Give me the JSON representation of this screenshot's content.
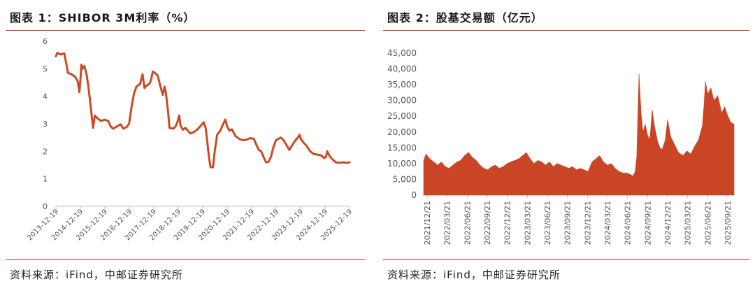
{
  "colors": {
    "line": "#cc4a22",
    "area": "#c94526",
    "rule": "#b8473a",
    "axis": "#bdbdbd",
    "tick_text": "#555555"
  },
  "chart_data": [
    {
      "type": "line",
      "title": "图表 1：SHIBOR 3M利率（%）",
      "source": "资料来源：iFind，中邮证券研究所",
      "ylim": [
        0,
        6
      ],
      "yticks": [
        "0",
        "1",
        "2",
        "3",
        "4",
        "5",
        "6"
      ],
      "x_tick_labels": [
        "2013-12-19",
        "2014-12-19",
        "2015-12-19",
        "2016-12-19",
        "2017-12-19",
        "2018-12-19",
        "2019-12-19",
        "2020-12-19",
        "2021-12-19",
        "2022-12-19",
        "2023-12-19",
        "2024-12-19",
        "2025-12-19"
      ],
      "x_range": [
        2013.96,
        2025.96
      ],
      "grid": false,
      "legend": "none",
      "series": [
        {
          "points": [
            [
              2013.96,
              5.45
            ],
            [
              2014.02,
              5.58
            ],
            [
              2014.15,
              5.52
            ],
            [
              2014.3,
              5.56
            ],
            [
              2014.38,
              5.2
            ],
            [
              2014.45,
              4.85
            ],
            [
              2014.6,
              4.8
            ],
            [
              2014.75,
              4.7
            ],
            [
              2014.85,
              4.55
            ],
            [
              2014.92,
              4.15
            ],
            [
              2014.97,
              4.7
            ],
            [
              2015.0,
              5.15
            ],
            [
              2015.05,
              5.0
            ],
            [
              2015.12,
              5.1
            ],
            [
              2015.2,
              4.85
            ],
            [
              2015.28,
              4.4
            ],
            [
              2015.36,
              3.8
            ],
            [
              2015.42,
              3.3
            ],
            [
              2015.48,
              2.85
            ],
            [
              2015.55,
              3.3
            ],
            [
              2015.65,
              3.2
            ],
            [
              2015.8,
              3.1
            ],
            [
              2015.95,
              3.15
            ],
            [
              2016.1,
              3.1
            ],
            [
              2016.2,
              2.9
            ],
            [
              2016.3,
              2.82
            ],
            [
              2016.45,
              2.9
            ],
            [
              2016.6,
              2.98
            ],
            [
              2016.72,
              2.82
            ],
            [
              2016.85,
              2.88
            ],
            [
              2016.95,
              3.0
            ],
            [
              2017.05,
              3.6
            ],
            [
              2017.15,
              4.1
            ],
            [
              2017.25,
              4.35
            ],
            [
              2017.4,
              4.45
            ],
            [
              2017.5,
              4.8
            ],
            [
              2017.58,
              4.3
            ],
            [
              2017.68,
              4.4
            ],
            [
              2017.78,
              4.45
            ],
            [
              2017.85,
              4.6
            ],
            [
              2017.92,
              4.9
            ],
            [
              2018.0,
              4.85
            ],
            [
              2018.12,
              4.75
            ],
            [
              2018.25,
              4.3
            ],
            [
              2018.33,
              4.05
            ],
            [
              2018.4,
              4.35
            ],
            [
              2018.45,
              4.15
            ],
            [
              2018.55,
              3.4
            ],
            [
              2018.6,
              2.85
            ],
            [
              2018.75,
              2.82
            ],
            [
              2018.85,
              2.9
            ],
            [
              2018.92,
              3.05
            ],
            [
              2019.0,
              3.3
            ],
            [
              2019.05,
              2.95
            ],
            [
              2019.15,
              2.78
            ],
            [
              2019.25,
              2.85
            ],
            [
              2019.35,
              2.75
            ],
            [
              2019.45,
              2.65
            ],
            [
              2019.6,
              2.7
            ],
            [
              2019.75,
              2.8
            ],
            [
              2019.9,
              2.95
            ],
            [
              2020.0,
              3.05
            ],
            [
              2020.08,
              2.85
            ],
            [
              2020.15,
              2.3
            ],
            [
              2020.22,
              1.75
            ],
            [
              2020.28,
              1.42
            ],
            [
              2020.38,
              1.42
            ],
            [
              2020.45,
              2.0
            ],
            [
              2020.55,
              2.6
            ],
            [
              2020.68,
              2.75
            ],
            [
              2020.8,
              3.0
            ],
            [
              2020.88,
              3.15
            ],
            [
              2020.96,
              2.9
            ],
            [
              2021.05,
              2.75
            ],
            [
              2021.15,
              2.8
            ],
            [
              2021.3,
              2.55
            ],
            [
              2021.45,
              2.45
            ],
            [
              2021.6,
              2.4
            ],
            [
              2021.75,
              2.42
            ],
            [
              2021.9,
              2.48
            ],
            [
              2022.05,
              2.45
            ],
            [
              2022.12,
              2.3
            ],
            [
              2022.25,
              2.05
            ],
            [
              2022.35,
              2.0
            ],
            [
              2022.45,
              1.78
            ],
            [
              2022.55,
              1.6
            ],
            [
              2022.65,
              1.62
            ],
            [
              2022.75,
              1.8
            ],
            [
              2022.85,
              2.15
            ],
            [
              2022.95,
              2.4
            ],
            [
              2023.05,
              2.45
            ],
            [
              2023.15,
              2.5
            ],
            [
              2023.25,
              2.42
            ],
            [
              2023.4,
              2.2
            ],
            [
              2023.5,
              2.05
            ],
            [
              2023.6,
              2.2
            ],
            [
              2023.75,
              2.4
            ],
            [
              2023.85,
              2.5
            ],
            [
              2023.92,
              2.6
            ],
            [
              2023.97,
              2.45
            ],
            [
              2024.05,
              2.35
            ],
            [
              2024.2,
              2.2
            ],
            [
              2024.35,
              2.0
            ],
            [
              2024.5,
              1.9
            ],
            [
              2024.65,
              1.88
            ],
            [
              2024.78,
              1.85
            ],
            [
              2024.85,
              1.82
            ],
            [
              2024.92,
              1.75
            ],
            [
              2025.0,
              1.8
            ],
            [
              2025.05,
              2.0
            ],
            [
              2025.15,
              1.82
            ],
            [
              2025.25,
              1.72
            ],
            [
              2025.4,
              1.6
            ],
            [
              2025.55,
              1.58
            ],
            [
              2025.7,
              1.6
            ],
            [
              2025.85,
              1.58
            ],
            [
              2025.96,
              1.6
            ]
          ]
        }
      ]
    },
    {
      "type": "area",
      "title": "图表 2：股基交易额（亿元）",
      "source": "资料来源：iFind，中邮证券研究所",
      "ylim": [
        0,
        45000
      ],
      "yticks": [
        "0",
        "5,000",
        "10,000",
        "15,000",
        "20,000",
        "25,000",
        "30,000",
        "35,000",
        "40,000",
        "45,000"
      ],
      "x_tick_labels": [
        "2021/12/21",
        "2022/03/21",
        "2022/06/21",
        "2022/09/21",
        "2022/12/21",
        "2023/03/21",
        "2023/06/21",
        "2023/09/21",
        "2023/12/21",
        "2024/03/21",
        "2024/06/21",
        "2024/09/21",
        "2024/12/21",
        "2025/03/21",
        "2025/06/21",
        "2025/09/21"
      ],
      "x_range": [
        2021.97,
        2025.99
      ],
      "grid": false,
      "legend": "none",
      "series": [
        {
          "points": [
            [
              2021.97,
              11000
            ],
            [
              2022.0,
              13000
            ],
            [
              2022.05,
              11500
            ],
            [
              2022.1,
              10500
            ],
            [
              2022.15,
              9500
            ],
            [
              2022.2,
              10500
            ],
            [
              2022.25,
              9000
            ],
            [
              2022.3,
              8500
            ],
            [
              2022.35,
              9500
            ],
            [
              2022.4,
              10500
            ],
            [
              2022.45,
              11000
            ],
            [
              2022.5,
              12500
            ],
            [
              2022.55,
              13500
            ],
            [
              2022.6,
              12000
            ],
            [
              2022.65,
              11000
            ],
            [
              2022.7,
              9500
            ],
            [
              2022.75,
              8500
            ],
            [
              2022.8,
              8000
            ],
            [
              2022.85,
              9000
            ],
            [
              2022.9,
              9500
            ],
            [
              2022.95,
              8500
            ],
            [
              2023.0,
              9000
            ],
            [
              2023.05,
              10000
            ],
            [
              2023.1,
              10500
            ],
            [
              2023.15,
              11000
            ],
            [
              2023.2,
              11500
            ],
            [
              2023.25,
              12500
            ],
            [
              2023.3,
              13500
            ],
            [
              2023.35,
              11500
            ],
            [
              2023.4,
              10000
            ],
            [
              2023.45,
              11000
            ],
            [
              2023.5,
              10500
            ],
            [
              2023.55,
              9500
            ],
            [
              2023.6,
              10500
            ],
            [
              2023.65,
              9000
            ],
            [
              2023.7,
              10000
            ],
            [
              2023.75,
              9500
            ],
            [
              2023.8,
              9000
            ],
            [
              2023.85,
              8500
            ],
            [
              2023.9,
              9000
            ],
            [
              2023.95,
              8000
            ],
            [
              2024.0,
              8500
            ],
            [
              2024.05,
              8000
            ],
            [
              2024.1,
              7500
            ],
            [
              2024.15,
              10500
            ],
            [
              2024.2,
              11500
            ],
            [
              2024.25,
              12500
            ],
            [
              2024.3,
              10500
            ],
            [
              2024.35,
              9500
            ],
            [
              2024.4,
              10000
            ],
            [
              2024.45,
              8500
            ],
            [
              2024.5,
              7500
            ],
            [
              2024.55,
              7000
            ],
            [
              2024.6,
              7000
            ],
            [
              2024.65,
              6500
            ],
            [
              2024.68,
              6000
            ],
            [
              2024.71,
              7500
            ],
            [
              2024.73,
              12000
            ],
            [
              2024.745,
              26000
            ],
            [
              2024.76,
              38500
            ],
            [
              2024.775,
              31000
            ],
            [
              2024.79,
              25000
            ],
            [
              2024.81,
              20000
            ],
            [
              2024.84,
              22500
            ],
            [
              2024.87,
              19000
            ],
            [
              2024.9,
              17500
            ],
            [
              2024.93,
              27000
            ],
            [
              2024.96,
              22000
            ],
            [
              2025.0,
              17000
            ],
            [
              2025.03,
              15000
            ],
            [
              2025.06,
              14500
            ],
            [
              2025.1,
              17500
            ],
            [
              2025.13,
              24000
            ],
            [
              2025.17,
              18500
            ],
            [
              2025.22,
              16000
            ],
            [
              2025.27,
              13500
            ],
            [
              2025.33,
              12500
            ],
            [
              2025.38,
              14000
            ],
            [
              2025.43,
              13000
            ],
            [
              2025.48,
              15500
            ],
            [
              2025.53,
              17500
            ],
            [
              2025.58,
              22000
            ],
            [
              2025.6,
              28000
            ],
            [
              2025.62,
              36000
            ],
            [
              2025.65,
              32000
            ],
            [
              2025.69,
              34000
            ],
            [
              2025.73,
              30000
            ],
            [
              2025.78,
              31500
            ],
            [
              2025.83,
              26000
            ],
            [
              2025.87,
              28000
            ],
            [
              2025.91,
              25000
            ],
            [
              2025.95,
              23000
            ],
            [
              2025.99,
              22500
            ]
          ]
        }
      ]
    }
  ]
}
